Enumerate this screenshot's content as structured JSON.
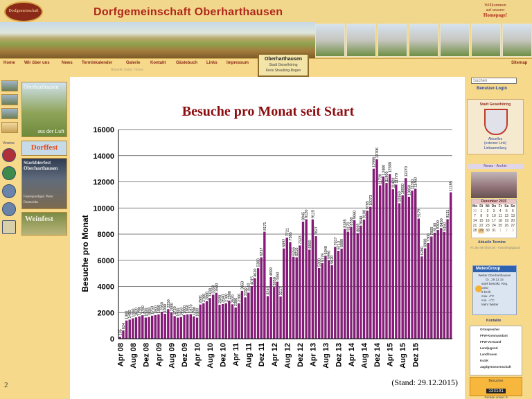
{
  "header": {
    "logo_text": "Dorfgemeinschaft",
    "site_title": "Dorfgemeinschaft Oberharthausen",
    "welcome_line1": "Willkommen",
    "welcome_line2": "auf unserer",
    "welcome_line3": "Homepage!"
  },
  "nav": {
    "items": [
      "Home",
      "Wir über uns",
      "News",
      "Terminkalender",
      "Galerie",
      "Kontakt",
      "Gästebuch",
      "Links",
      "Impressum"
    ],
    "sitemap": "Sitemap",
    "badge_title": "Oberharthausen",
    "badge_sub1": "Stadt Geiselhöring",
    "badge_sub2": "Kreis Straubing-Bogen"
  },
  "breadcrumb": "Aktuelle Seite: Home",
  "left": {
    "aerial_caption_top": "Oberharthausen",
    "aerial_caption_bottom": "aus der Luft",
    "dorffest": "Dorffest",
    "starkbier": "Starkbierfest Oberharthausen",
    "starkbier_sub": "Fastenprediger: Peter Dramsiske",
    "weinfest": "Weinfest",
    "vereine_label": "Vereine",
    "page_number": "2"
  },
  "chart_data": {
    "type": "bar",
    "title": "Besuche pro Monat seit Start",
    "ylabel": "Besuche pro Monat",
    "xlabel": "",
    "ylim": [
      0,
      16000
    ],
    "yticks": [
      0,
      2000,
      4000,
      6000,
      8000,
      10000,
      12000,
      14000,
      16000
    ],
    "xtick_labels": [
      "Apr 08",
      "Aug 08",
      "Dez 08",
      "Apr 09",
      "Aug 09",
      "Dez 09",
      "Apr 10",
      "Aug 10",
      "Dez 10",
      "Apr 11",
      "Aug 11",
      "Dez 11",
      "Apr 12",
      "Aug 12",
      "Dez 12",
      "Apr 13",
      "Aug 13",
      "Dez 13",
      "Apr 14",
      "Aug 14",
      "Dez 14",
      "Apr 15",
      "Aug 15",
      "Dez 15"
    ],
    "bar_color": "#8a1a7c",
    "stand_note": "(Stand: 29.12.2015)",
    "values": [
      135,
      624,
      1380,
      1450,
      1550,
      1620,
      1700,
      1780,
      1600,
      1650,
      1750,
      1800,
      1850,
      2050,
      1900,
      2250,
      2000,
      1720,
      1600,
      1650,
      1800,
      1850,
      1870,
      1700,
      1600,
      2601,
      2700,
      2860,
      3100,
      3350,
      3500,
      2590,
      2640,
      2700,
      2900,
      2620,
      2380,
      2700,
      3650,
      3150,
      3510,
      4015,
      4620,
      5380,
      6217,
      8171,
      3245,
      4699,
      3950,
      4350,
      3217,
      6892,
      7721,
      7385,
      6255,
      6210,
      7123,
      8945,
      9120,
      6800,
      9115,
      7827,
      5390,
      5779,
      6340,
      5990,
      5620,
      7017,
      6713,
      6880,
      8385,
      8170,
      8550,
      9060,
      8065,
      8640,
      9100,
      9785,
      10073,
      12986,
      13706,
      11720,
      12400,
      11900,
      12588,
      11420,
      11779,
      10350,
      10950,
      12270,
      10850,
      11310,
      11460,
      9179,
      6280,
      6900,
      7300,
      7800,
      8100,
      8300,
      8450,
      8160,
      9131,
      11185
    ]
  },
  "right": {
    "search_placeholder": "Suchen",
    "login": "Benutzer-Login",
    "gemeinde_title": "Stadt Geiselhöring",
    "gemeinde_link1": "Aktuelles",
    "gemeinde_link1b": "(externer Link)",
    "gemeinde_link2": "Linksammlung",
    "news_header": "News - Archiv",
    "cal_title": "Dezember 2015",
    "cal_days": [
      "Mo",
      "Di",
      "Mi",
      "Do",
      "Fr",
      "Sa",
      "So"
    ],
    "cal_rows": [
      [
        "30",
        "1",
        "2",
        "3",
        "4",
        "5",
        "6"
      ],
      [
        "7",
        "8",
        "9",
        "10",
        "11",
        "12",
        "13"
      ],
      [
        "14",
        "15",
        "16",
        "17",
        "18",
        "19",
        "20"
      ],
      [
        "21",
        "22",
        "23",
        "24",
        "25",
        "26",
        "27"
      ],
      [
        "28",
        "29",
        "30",
        "31",
        "1",
        "2",
        "3"
      ]
    ],
    "termine": "Aktuelle Termine",
    "termine_text": "Fr.Jan.08 @19:30 - Faschingsgaudi",
    "weather_brand": "MeteoGroup",
    "weather_loc1": "Wetter Oberharthausen",
    "weather_loc2": "Di., 29.12.15",
    "weather_info": [
      "stark bewölkt, Reg.",
      "OSO",
      "9 km/h",
      "max. 4°C",
      "min. -1°C",
      "Mehr Wetter"
    ],
    "contacts_header": "Kontakte",
    "contacts": [
      "Ortssprecher",
      "FFW-Kommandant",
      "FFW-Vorstand",
      "Landjugend",
      "Landfrauen",
      "KuSK",
      "Jagdgenossenschaft"
    ],
    "counter_label": "Besucher",
    "counter_value": "133191",
    "counter_online": "Gerade online: 9"
  }
}
